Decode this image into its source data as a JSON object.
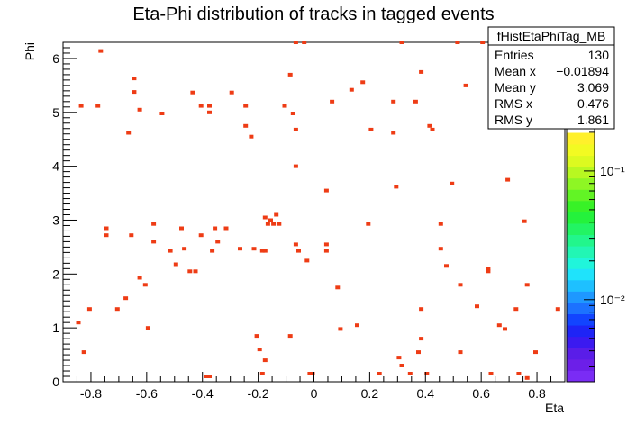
{
  "chart_data": {
    "type": "heatmap",
    "title": "Eta-Phi distribution of tracks in tagged events",
    "xlabel": "Eta",
    "ylabel": "Phi",
    "xlim": [
      -0.9,
      0.9
    ],
    "ylim": [
      0,
      6.3
    ],
    "x_ticks": [
      "-0.8",
      "-0.6",
      "-0.4",
      "-0.2",
      "0",
      "0.2",
      "0.4",
      "0.6",
      "0.8"
    ],
    "y_ticks": [
      "0",
      "1",
      "2",
      "3",
      "4",
      "5",
      "6"
    ],
    "grid": false,
    "stats_box": {
      "name": "fHistEtaPhiTag_MB",
      "rows": [
        {
          "label": "Entries",
          "value": "130"
        },
        {
          "label": "Mean x",
          "value": "−0.01894"
        },
        {
          "label": "Mean y",
          "value": "3.069"
        },
        {
          "label": "RMS x",
          "value": "0.476"
        },
        {
          "label": "RMS y",
          "value": "1.861"
        }
      ]
    },
    "palette": {
      "scale": "log",
      "labels": [
        "10⁻¹",
        "10⁻²"
      ],
      "label_values": [
        0.1,
        0.01
      ],
      "range": [
        0.0023,
        1.0
      ]
    },
    "cell_color": "#ee3c15",
    "points": [
      [
        -0.845,
        1.1
      ],
      [
        -0.825,
        0.55
      ],
      [
        -0.805,
        1.35
      ],
      [
        -0.835,
        5.12
      ],
      [
        -0.765,
        6.14
      ],
      [
        -0.775,
        5.12
      ],
      [
        -0.745,
        2.85
      ],
      [
        -0.745,
        2.72
      ],
      [
        -0.705,
        1.35
      ],
      [
        -0.675,
        1.55
      ],
      [
        -0.655,
        2.72
      ],
      [
        -0.665,
        4.62
      ],
      [
        -0.645,
        5.63
      ],
      [
        -0.645,
        5.38
      ],
      [
        -0.625,
        5.05
      ],
      [
        -0.625,
        1.93
      ],
      [
        -0.605,
        1.8
      ],
      [
        -0.595,
        1.0
      ],
      [
        -0.575,
        2.93
      ],
      [
        -0.575,
        2.6
      ],
      [
        -0.545,
        4.98
      ],
      [
        -0.515,
        2.43
      ],
      [
        -0.495,
        2.18
      ],
      [
        -0.475,
        2.85
      ],
      [
        -0.465,
        2.47
      ],
      [
        -0.445,
        2.05
      ],
      [
        -0.435,
        5.37
      ],
      [
        -0.425,
        2.05
      ],
      [
        -0.405,
        5.12
      ],
      [
        -0.405,
        2.72
      ],
      [
        -0.385,
        0.1
      ],
      [
        -0.375,
        0.1
      ],
      [
        -0.375,
        5.12
      ],
      [
        -0.375,
        5.0
      ],
      [
        -0.365,
        2.43
      ],
      [
        -0.355,
        2.85
      ],
      [
        -0.345,
        2.6
      ],
      [
        -0.315,
        2.85
      ],
      [
        -0.295,
        5.37
      ],
      [
        -0.265,
        2.47
      ],
      [
        -0.245,
        4.75
      ],
      [
        -0.245,
        5.12
      ],
      [
        -0.225,
        4.55
      ],
      [
        -0.215,
        2.47
      ],
      [
        -0.205,
        0.85
      ],
      [
        -0.195,
        0.6
      ],
      [
        -0.185,
        2.43
      ],
      [
        -0.175,
        2.43
      ],
      [
        -0.175,
        0.4
      ],
      [
        -0.185,
        0.15
      ],
      [
        -0.175,
        3.05
      ],
      [
        -0.165,
        2.93
      ],
      [
        -0.155,
        3.0
      ],
      [
        -0.145,
        2.93
      ],
      [
        -0.135,
        3.1
      ],
      [
        -0.125,
        2.93
      ],
      [
        -0.105,
        5.12
      ],
      [
        -0.085,
        5.7
      ],
      [
        -0.085,
        0.85
      ],
      [
        -0.065,
        6.3
      ],
      [
        -0.075,
        4.98
      ],
      [
        -0.065,
        4.68
      ],
      [
        -0.065,
        4.0
      ],
      [
        -0.065,
        2.55
      ],
      [
        -0.055,
        2.43
      ],
      [
        -0.035,
        6.3
      ],
      [
        -0.025,
        2.25
      ],
      [
        -0.015,
        0.15
      ],
      [
        -0.005,
        0.15
      ],
      [
        0.045,
        3.55
      ],
      [
        0.045,
        2.55
      ],
      [
        0.045,
        2.43
      ],
      [
        0.065,
        5.2
      ],
      [
        0.085,
        1.75
      ],
      [
        0.095,
        0.98
      ],
      [
        0.135,
        5.42
      ],
      [
        0.155,
        1.05
      ],
      [
        0.175,
        5.56
      ],
      [
        0.195,
        2.93
      ],
      [
        0.205,
        4.68
      ],
      [
        0.235,
        0.15
      ],
      [
        0.285,
        5.2
      ],
      [
        0.285,
        4.62
      ],
      [
        0.295,
        3.62
      ],
      [
        0.305,
        0.45
      ],
      [
        0.315,
        6.3
      ],
      [
        0.315,
        0.3
      ],
      [
        0.345,
        0.15
      ],
      [
        0.365,
        5.2
      ],
      [
        0.375,
        0.55
      ],
      [
        0.385,
        5.75
      ],
      [
        0.385,
        1.35
      ],
      [
        0.385,
        0.8
      ],
      [
        0.405,
        0.15
      ],
      [
        0.415,
        4.75
      ],
      [
        0.425,
        4.68
      ],
      [
        0.455,
        2.93
      ],
      [
        0.455,
        2.47
      ],
      [
        0.475,
        2.15
      ],
      [
        0.495,
        3.68
      ],
      [
        0.515,
        6.3
      ],
      [
        0.525,
        1.8
      ],
      [
        0.525,
        0.55
      ],
      [
        0.545,
        5.5
      ],
      [
        0.585,
        1.4
      ],
      [
        0.605,
        6.3
      ],
      [
        0.625,
        2.1
      ],
      [
        0.625,
        2.05
      ],
      [
        0.635,
        0.15
      ],
      [
        0.665,
        1.05
      ],
      [
        0.685,
        0.98
      ],
      [
        0.695,
        3.75
      ],
      [
        0.725,
        1.35
      ],
      [
        0.735,
        0.15
      ],
      [
        0.755,
        2.98
      ],
      [
        0.765,
        1.8
      ],
      [
        0.765,
        0.07
      ],
      [
        0.795,
        0.55
      ],
      [
        0.875,
        1.35
      ]
    ]
  }
}
